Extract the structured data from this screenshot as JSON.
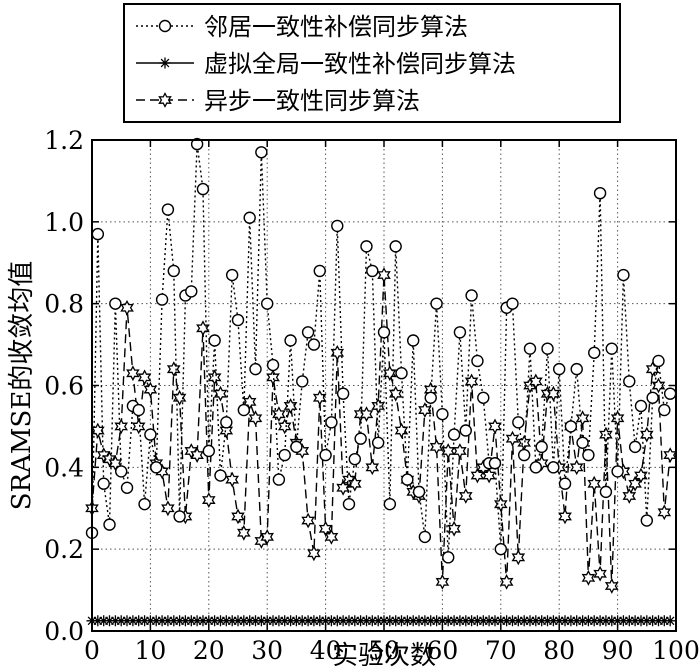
{
  "chart_data": {
    "type": "line",
    "xlabel": "实验次数",
    "ylabel": "SRAMSE的收敛均值",
    "xlim": [
      0,
      100
    ],
    "ylim": [
      0,
      1.2
    ],
    "xticks": [
      "0",
      "10",
      "20",
      "30",
      "40",
      "50",
      "60",
      "70",
      "80",
      "90",
      "100"
    ],
    "yticks": [
      "0.0",
      "0.2",
      "0.4",
      "0.6",
      "0.8",
      "1.0",
      "1.2"
    ],
    "grid": true,
    "legend_position": "top-left",
    "series": [
      {
        "name": "邻居一致性补偿同步算法",
        "linestyle": "dotted",
        "marker": "circle",
        "values": [
          0.24,
          0.97,
          0.36,
          0.26,
          0.8,
          0.39,
          0.35,
          0.55,
          0.54,
          0.31,
          0.48,
          0.4,
          0.81,
          1.03,
          0.88,
          0.28,
          0.82,
          0.83,
          1.19,
          1.08,
          0.44,
          0.71,
          0.38,
          0.51,
          0.87,
          0.76,
          0.54,
          1.01,
          0.64,
          1.17,
          0.8,
          0.65,
          0.37,
          0.43,
          0.71,
          0.45,
          0.61,
          0.73,
          0.7,
          0.88,
          0.43,
          0.51,
          0.99,
          0.58,
          0.31,
          0.42,
          0.47,
          0.94,
          0.88,
          0.46,
          0.73,
          0.31,
          0.94,
          0.63,
          0.37,
          0.71,
          0.34,
          0.23,
          0.57,
          0.8,
          0.53,
          0.18,
          0.48,
          0.73,
          0.49,
          0.82,
          0.66,
          0.57,
          0.41,
          0.41,
          0.2,
          0.79,
          0.8,
          0.51,
          0.43,
          0.69,
          0.4,
          0.45,
          0.69,
          0.4,
          0.64,
          0.36,
          0.5,
          0.64,
          0.46,
          0.43,
          0.68,
          1.07,
          0.34,
          0.69,
          0.39,
          0.87,
          0.61,
          0.45,
          0.55,
          0.27,
          0.57,
          0.66,
          0.54,
          0.58
        ]
      },
      {
        "name": "虚拟全局一致性补偿同步算法",
        "linestyle": "solid",
        "marker": "star",
        "values": [
          0.025,
          0.025,
          0.025,
          0.025,
          0.025,
          0.025,
          0.025,
          0.025,
          0.025,
          0.025,
          0.025,
          0.025,
          0.025,
          0.025,
          0.025,
          0.025,
          0.025,
          0.025,
          0.025,
          0.025,
          0.025,
          0.025,
          0.025,
          0.025,
          0.025,
          0.025,
          0.025,
          0.025,
          0.025,
          0.025,
          0.025,
          0.025,
          0.025,
          0.025,
          0.025,
          0.025,
          0.025,
          0.025,
          0.025,
          0.025,
          0.025,
          0.025,
          0.025,
          0.025,
          0.025,
          0.025,
          0.025,
          0.025,
          0.025,
          0.025,
          0.025,
          0.025,
          0.025,
          0.025,
          0.025,
          0.025,
          0.025,
          0.025,
          0.025,
          0.025,
          0.025,
          0.025,
          0.025,
          0.025,
          0.025,
          0.025,
          0.025,
          0.025,
          0.025,
          0.025,
          0.025,
          0.025,
          0.025,
          0.025,
          0.025,
          0.025,
          0.025,
          0.025,
          0.025,
          0.025,
          0.025,
          0.025,
          0.025,
          0.025,
          0.025,
          0.025,
          0.025,
          0.025,
          0.025,
          0.025,
          0.025,
          0.025,
          0.025,
          0.025,
          0.025,
          0.025,
          0.025,
          0.025,
          0.025,
          0.025
        ]
      },
      {
        "name": "异步一致性同步算法",
        "linestyle": "dashed",
        "marker": "hexagram",
        "values": [
          0.3,
          0.49,
          0.43,
          0.42,
          0.41,
          0.5,
          0.79,
          0.63,
          0.5,
          0.62,
          0.59,
          0.41,
          0.39,
          0.3,
          0.64,
          0.57,
          0.28,
          0.44,
          0.43,
          0.74,
          0.32,
          0.62,
          0.58,
          0.49,
          0.37,
          0.28,
          0.24,
          0.56,
          0.52,
          0.22,
          0.23,
          0.62,
          0.53,
          0.5,
          0.55,
          0.46,
          0.44,
          0.27,
          0.19,
          0.57,
          0.25,
          0.23,
          0.68,
          0.35,
          0.37,
          0.36,
          0.53,
          0.53,
          0.4,
          0.55,
          0.87,
          0.63,
          0.58,
          0.49,
          0.37,
          0.34,
          0.33,
          0.54,
          0.59,
          0.45,
          0.12,
          0.44,
          0.25,
          0.44,
          0.33,
          0.61,
          0.38,
          0.4,
          0.38,
          0.5,
          0.31,
          0.12,
          0.47,
          0.18,
          0.46,
          0.6,
          0.61,
          0.41,
          0.58,
          0.58,
          0.4,
          0.28,
          0.5,
          0.4,
          0.52,
          0.13,
          0.36,
          0.14,
          0.48,
          0.11,
          0.52,
          0.39,
          0.33,
          0.36,
          0.38,
          0.48,
          0.64,
          0.6,
          0.29,
          0.43
        ]
      }
    ]
  }
}
